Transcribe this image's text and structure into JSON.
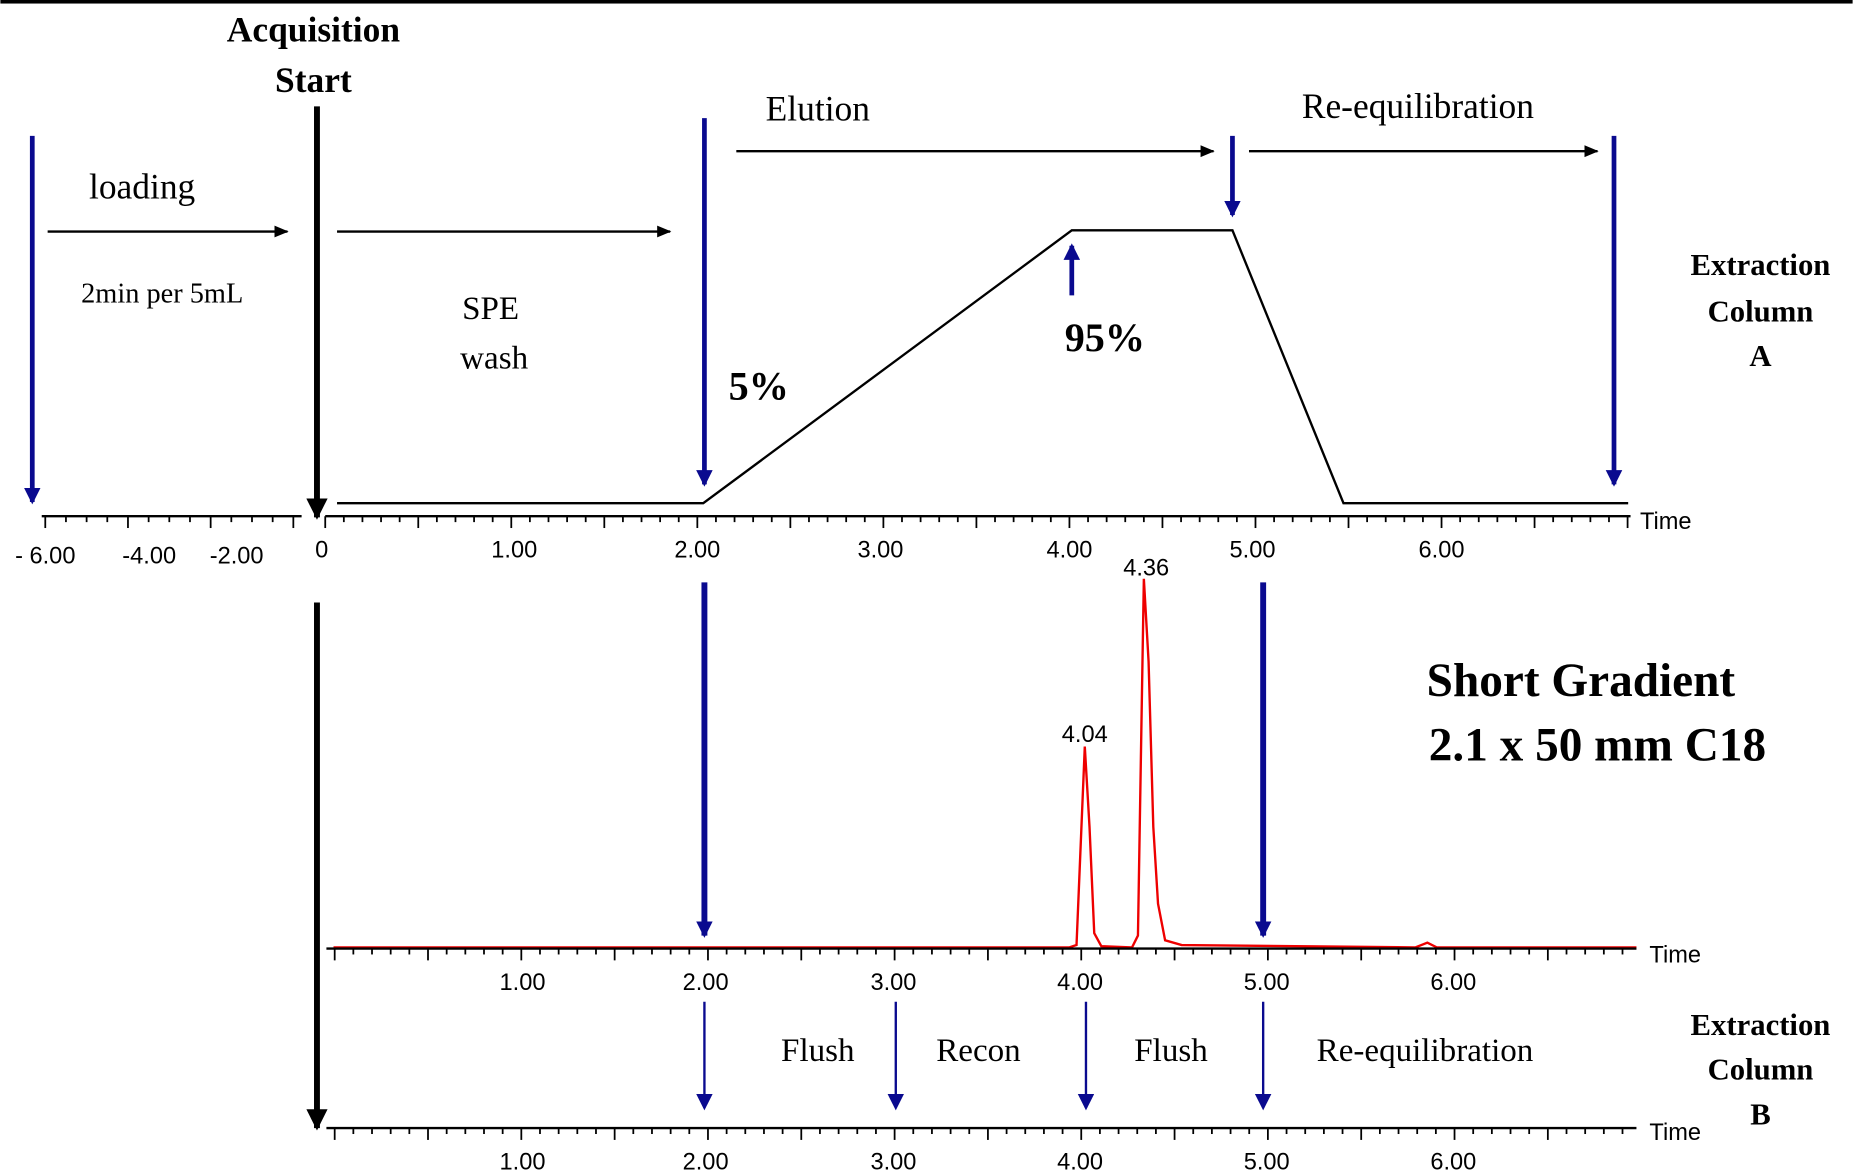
{
  "header": {
    "acquisition_start": [
      "Acquisition",
      "Start"
    ]
  },
  "column_a": {
    "phases": {
      "loading": "loading",
      "loading_rate": "2min per 5mL",
      "spe_wash": [
        "SPE",
        "wash"
      ],
      "elution": "Elution",
      "re_equilibration": "Re-equilibration"
    },
    "gradient_labels": {
      "start": "5%",
      "peak": "95%"
    },
    "label": [
      "Extraction",
      "Column",
      "A"
    ],
    "axis": {
      "title": "Time",
      "ticks": [
        "- 6.00",
        "-4.00",
        "-2.00",
        "0",
        "1.00",
        "2.00",
        "3.00",
        "4.00",
        "5.00",
        "6.00"
      ]
    }
  },
  "chromatogram": {
    "title": [
      "Short Gradient",
      "2.1 x 50 mm C18"
    ],
    "peaks": [
      "4.04",
      "4.36"
    ],
    "axis": {
      "title": "Time",
      "ticks": [
        "1.00",
        "2.00",
        "3.00",
        "4.00",
        "5.00",
        "6.00"
      ]
    }
  },
  "column_b": {
    "phases": [
      "Flush",
      "Recon",
      "Flush",
      "Re-equilibration"
    ],
    "label": [
      "Extraction",
      "Column",
      "B"
    ],
    "axis": {
      "title": "Time",
      "ticks": [
        "1.00",
        "2.00",
        "3.00",
        "4.00",
        "5.00",
        "6.00"
      ]
    }
  }
}
